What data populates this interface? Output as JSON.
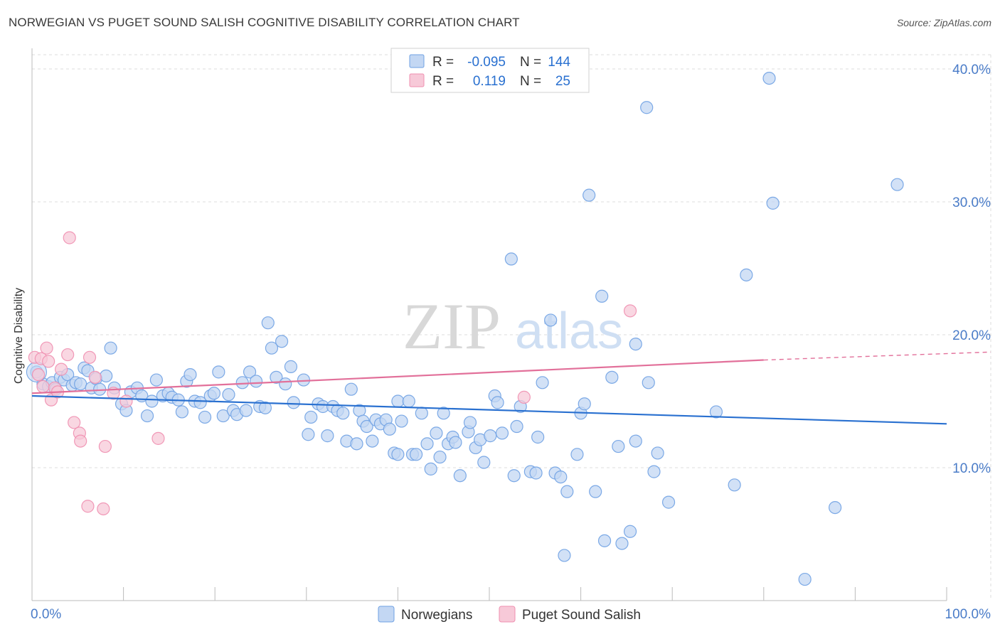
{
  "title": "NORWEGIAN VS PUGET SOUND SALISH COGNITIVE DISABILITY CORRELATION CHART",
  "source": "Source: ZipAtlas.com",
  "watermark": {
    "zip": "ZIP",
    "atlas": "atlas"
  },
  "colors": {
    "blue": "#6fa1e3",
    "blue_fill": "#c3d7f3",
    "blue_line": "#2970d0",
    "pink": "#ef8fb0",
    "pink_fill": "#f7c9d8",
    "pink_line": "#e2709a",
    "axis_text": "#4a7cc8",
    "grid": "#dcdcdc"
  },
  "legend": {
    "rows": [
      {
        "series": "Norwegians",
        "r_label": "R =",
        "r_value": "-0.095",
        "n_label": "N =",
        "n_value": "144"
      },
      {
        "series": "Puget Sound Salish",
        "r_label": "R =",
        "r_value": "0.119",
        "n_label": "N =",
        "n_value": "25"
      }
    ]
  },
  "bottom_legend": [
    "Norwegians",
    "Puget Sound Salish"
  ],
  "chart_data": {
    "type": "scatter",
    "xlabel": "",
    "ylabel": "Cognitive Disability",
    "xlim": [
      0,
      100
    ],
    "ylim": [
      0,
      42
    ],
    "x_tick_labels": [
      "0.0%",
      "100.0%"
    ],
    "y_ticks": [
      10,
      20,
      30,
      40
    ],
    "y_tick_labels": [
      "10.0%",
      "20.0%",
      "30.0%",
      "40.0%"
    ],
    "series": [
      {
        "name": "Norwegians",
        "trend": {
          "x": [
            0,
            100
          ],
          "y": [
            15.4,
            13.3
          ]
        },
        "points": [
          [
            0.5,
            17.2
          ],
          [
            1.2,
            16.3
          ],
          [
            1.8,
            16.1
          ],
          [
            2.2,
            16.4
          ],
          [
            2.6,
            15.9
          ],
          [
            3.1,
            16.8
          ],
          [
            3.5,
            16.6
          ],
          [
            3.9,
            17.0
          ],
          [
            4.4,
            16.2
          ],
          [
            4.8,
            16.4
          ],
          [
            5.3,
            16.3
          ],
          [
            5.7,
            17.5
          ],
          [
            6.1,
            17.3
          ],
          [
            6.5,
            16.0
          ],
          [
            7.0,
            16.7
          ],
          [
            7.4,
            15.9
          ],
          [
            8.1,
            16.9
          ],
          [
            8.6,
            19.0
          ],
          [
            9.0,
            16.0
          ],
          [
            9.8,
            14.8
          ],
          [
            10.3,
            14.3
          ],
          [
            10.8,
            15.7
          ],
          [
            11.5,
            16.0
          ],
          [
            12.0,
            15.4
          ],
          [
            12.6,
            13.9
          ],
          [
            13.1,
            15.0
          ],
          [
            13.6,
            16.6
          ],
          [
            14.3,
            15.4
          ],
          [
            14.9,
            15.6
          ],
          [
            15.3,
            15.3
          ],
          [
            16.0,
            15.1
          ],
          [
            16.4,
            14.2
          ],
          [
            16.9,
            16.5
          ],
          [
            17.3,
            17.0
          ],
          [
            17.8,
            15.0
          ],
          [
            18.4,
            14.9
          ],
          [
            18.9,
            13.8
          ],
          [
            19.5,
            15.4
          ],
          [
            19.9,
            15.6
          ],
          [
            20.4,
            17.2
          ],
          [
            20.9,
            13.9
          ],
          [
            21.5,
            15.5
          ],
          [
            22.0,
            14.3
          ],
          [
            22.4,
            14.0
          ],
          [
            23.0,
            16.4
          ],
          [
            23.4,
            14.3
          ],
          [
            23.8,
            17.2
          ],
          [
            24.5,
            16.5
          ],
          [
            24.9,
            14.6
          ],
          [
            25.5,
            14.5
          ],
          [
            25.8,
            20.9
          ],
          [
            26.2,
            19.0
          ],
          [
            26.7,
            16.8
          ],
          [
            27.3,
            19.5
          ],
          [
            27.7,
            16.3
          ],
          [
            28.3,
            17.6
          ],
          [
            28.6,
            14.9
          ],
          [
            29.7,
            16.6
          ],
          [
            30.5,
            13.8
          ],
          [
            30.2,
            12.5
          ],
          [
            31.3,
            14.8
          ],
          [
            31.8,
            14.6
          ],
          [
            32.3,
            12.4
          ],
          [
            32.9,
            14.6
          ],
          [
            33.4,
            14.3
          ],
          [
            34.0,
            14.1
          ],
          [
            34.4,
            12.0
          ],
          [
            34.9,
            15.9
          ],
          [
            35.5,
            11.8
          ],
          [
            35.8,
            14.3
          ],
          [
            36.2,
            13.5
          ],
          [
            36.6,
            13.1
          ],
          [
            37.2,
            12.0
          ],
          [
            37.6,
            13.6
          ],
          [
            38.1,
            13.3
          ],
          [
            38.7,
            13.6
          ],
          [
            39.1,
            12.9
          ],
          [
            39.6,
            11.1
          ],
          [
            40.0,
            15.0
          ],
          [
            40.4,
            13.5
          ],
          [
            41.2,
            15.0
          ],
          [
            41.6,
            11.0
          ],
          [
            42.0,
            11.0
          ],
          [
            42.6,
            14.1
          ],
          [
            43.2,
            11.8
          ],
          [
            43.6,
            9.9
          ],
          [
            44.2,
            12.6
          ],
          [
            44.6,
            10.8
          ],
          [
            45.0,
            14.1
          ],
          [
            45.5,
            11.8
          ],
          [
            46.0,
            12.3
          ],
          [
            46.3,
            11.9
          ],
          [
            46.8,
            9.4
          ],
          [
            47.7,
            12.7
          ],
          [
            47.9,
            13.4
          ],
          [
            48.5,
            11.5
          ],
          [
            49.0,
            12.1
          ],
          [
            49.4,
            10.4
          ],
          [
            50.1,
            12.4
          ],
          [
            50.6,
            15.4
          ],
          [
            50.9,
            14.9
          ],
          [
            51.4,
            12.6
          ],
          [
            52.4,
            25.7
          ],
          [
            52.7,
            9.4
          ],
          [
            53.0,
            13.1
          ],
          [
            53.4,
            14.6
          ],
          [
            54.5,
            9.7
          ],
          [
            55.1,
            9.6
          ],
          [
            55.3,
            12.3
          ],
          [
            55.8,
            16.4
          ],
          [
            56.7,
            21.1
          ],
          [
            57.2,
            9.6
          ],
          [
            57.8,
            9.3
          ],
          [
            58.2,
            3.4
          ],
          [
            58.5,
            8.2
          ],
          [
            59.6,
            11.0
          ],
          [
            60.0,
            14.1
          ],
          [
            60.4,
            14.8
          ],
          [
            60.9,
            30.5
          ],
          [
            61.6,
            8.2
          ],
          [
            62.3,
            22.9
          ],
          [
            62.6,
            4.5
          ],
          [
            63.4,
            16.8
          ],
          [
            64.1,
            11.6
          ],
          [
            64.5,
            4.3
          ],
          [
            65.4,
            5.2
          ],
          [
            66.0,
            12.0
          ],
          [
            66.0,
            19.3
          ],
          [
            67.2,
            37.1
          ],
          [
            67.4,
            16.4
          ],
          [
            68.0,
            9.7
          ],
          [
            68.4,
            11.1
          ],
          [
            69.6,
            7.4
          ],
          [
            74.8,
            14.2
          ],
          [
            76.8,
            8.7
          ],
          [
            78.1,
            24.5
          ],
          [
            80.6,
            39.3
          ],
          [
            81.0,
            29.9
          ],
          [
            84.5,
            1.6
          ],
          [
            87.8,
            7.0
          ],
          [
            94.6,
            31.3
          ],
          [
            40.0,
            11.0
          ]
        ]
      },
      {
        "name": "Puget Sound Salish",
        "trend": {
          "x": [
            0,
            80
          ],
          "y": [
            15.6,
            18.1
          ]
        },
        "trend_ext": {
          "x": [
            80,
            100
          ],
          "y": [
            18.1,
            18.7
          ]
        },
        "points": [
          [
            0.3,
            18.3
          ],
          [
            0.7,
            17.0
          ],
          [
            1.0,
            18.2
          ],
          [
            1.2,
            16.1
          ],
          [
            1.6,
            19.0
          ],
          [
            1.8,
            18.0
          ],
          [
            2.1,
            15.1
          ],
          [
            2.5,
            16.0
          ],
          [
            2.8,
            15.7
          ],
          [
            3.2,
            17.4
          ],
          [
            3.9,
            18.5
          ],
          [
            4.1,
            27.3
          ],
          [
            4.6,
            13.4
          ],
          [
            5.2,
            12.6
          ],
          [
            5.3,
            12.0
          ],
          [
            6.1,
            7.1
          ],
          [
            6.3,
            18.3
          ],
          [
            6.9,
            16.8
          ],
          [
            7.8,
            6.9
          ],
          [
            8.0,
            11.6
          ],
          [
            8.9,
            15.6
          ],
          [
            10.3,
            15.0
          ],
          [
            13.8,
            12.2
          ],
          [
            53.8,
            15.3
          ],
          [
            65.4,
            21.8
          ]
        ]
      }
    ]
  }
}
